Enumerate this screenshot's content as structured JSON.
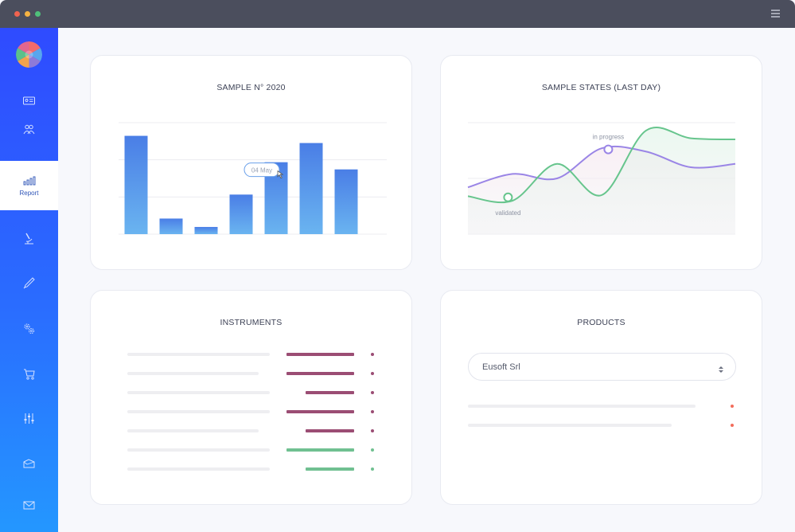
{
  "window": {
    "controls": [
      "close",
      "minimize",
      "maximize"
    ],
    "menu_icon": "hamburger-menu-icon"
  },
  "sidebar": {
    "logo": "color-wheel-logo",
    "items": [
      {
        "icon": "id-card-icon",
        "label": ""
      },
      {
        "icon": "users-icon",
        "label": ""
      },
      {
        "icon": "bar-chart-icon",
        "label": "Report",
        "active": true
      },
      {
        "icon": "microscope-icon",
        "label": ""
      },
      {
        "icon": "pipette-icon",
        "label": ""
      },
      {
        "icon": "gears-icon",
        "label": ""
      },
      {
        "icon": "cart-icon",
        "label": ""
      },
      {
        "icon": "sliders-icon",
        "label": ""
      },
      {
        "icon": "open-box-icon",
        "label": ""
      },
      {
        "icon": "mail-icon",
        "label": ""
      }
    ],
    "colors": {
      "top": "#2f4bff",
      "bottom": "#2497ff",
      "active_label": "#2f55b8"
    }
  },
  "cards": {
    "sample": {
      "title": "SAMPLE N° 2020"
    },
    "states": {
      "title": "SAMPLE STATES (LAST DAY)"
    },
    "instruments": {
      "title": "INSTRUMENTS"
    },
    "products": {
      "title": "PRODUCTS",
      "select_value": "Eusoft Srl"
    }
  },
  "chart_data": [
    {
      "type": "bar",
      "title": "SAMPLE N° 2020",
      "categories": [
        "",
        "",
        "",
        "",
        "",
        "",
        ""
      ],
      "values": [
        82,
        13,
        6,
        33,
        60,
        76,
        54
      ],
      "ylim": [
        0,
        93
      ],
      "grid": true,
      "color_top": "#4a7ee6",
      "color_bottom": "#6ab4f0",
      "tooltip": {
        "text": "04 May",
        "bar_index": 4
      }
    },
    {
      "type": "line",
      "title": "SAMPLE STATES (LAST DAY)",
      "x": [
        0,
        1,
        2,
        3,
        4,
        5,
        6
      ],
      "series": [
        {
          "name": "",
          "values": [
            42,
            54,
            50,
            77,
            74,
            60,
            63
          ],
          "color": "#9a85e6"
        },
        {
          "name": "",
          "values": [
            34,
            30,
            63,
            35,
            93,
            86,
            85
          ],
          "color": "#67c58d"
        }
      ],
      "ylim": [
        0,
        100
      ],
      "grid": true,
      "annotations": [
        {
          "text": "validated",
          "series": 1,
          "x": 0.9,
          "y": 33
        },
        {
          "text": "in progress",
          "series": 0,
          "x": 3.15,
          "y": 76
        }
      ]
    }
  ],
  "instruments": {
    "rows": [
      {
        "line_fraction": 1.0,
        "bar_fraction": 1.0,
        "status": "alert"
      },
      {
        "line_fraction": 0.92,
        "bar_fraction": 1.0,
        "status": "alert"
      },
      {
        "line_fraction": 1.0,
        "bar_fraction": 0.72,
        "status": "alert"
      },
      {
        "line_fraction": 1.0,
        "bar_fraction": 1.0,
        "status": "alert"
      },
      {
        "line_fraction": 0.92,
        "bar_fraction": 0.72,
        "status": "alert"
      },
      {
        "line_fraction": 1.0,
        "bar_fraction": 1.0,
        "status": "ok"
      },
      {
        "line_fraction": 1.0,
        "bar_fraction": 0.72,
        "status": "ok"
      }
    ],
    "colors": {
      "alert": "#9b4d74",
      "ok": "#70c091",
      "line": "#eeeef1"
    }
  },
  "products": {
    "rows": [
      {
        "line_fraction": 0.85,
        "status_color": "#f26d5b"
      },
      {
        "line_fraction": 0.76,
        "status_color": "#f26d5b"
      }
    ]
  }
}
